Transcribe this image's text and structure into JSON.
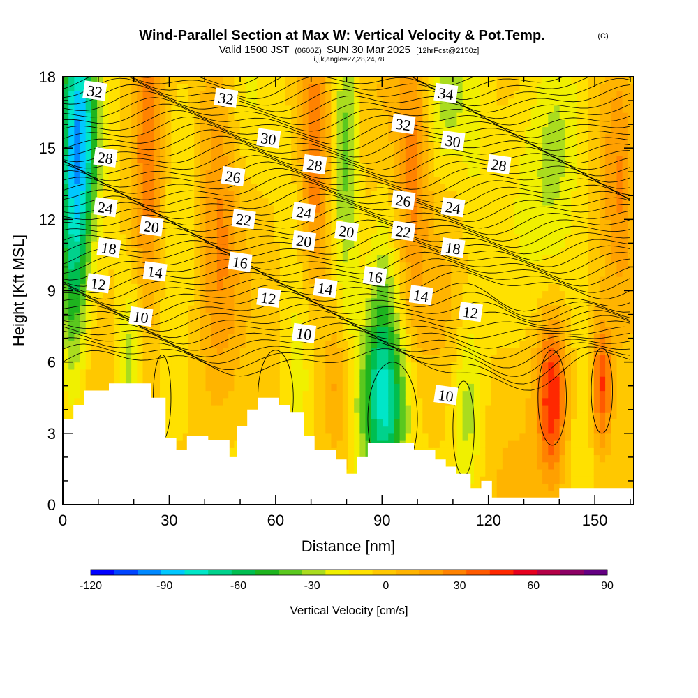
{
  "header": {
    "title": "Wind-Parallel Section at Max W: Vertical Velocity & Pot.Temp.",
    "copyright": "(C)",
    "valid_prefix": "Valid 1500 JST",
    "valid_utc": "(0600Z)",
    "valid_date": "SUN 30 Mar 2025",
    "forecast": "[12hrFcst@2150z]",
    "indices": "i,j,k,angle=27,28,24,78"
  },
  "chart_data": {
    "type": "heatmap",
    "xlabel": "Distance [nm]",
    "ylabel": "Height [Kft MSL]",
    "xlim": [
      0,
      161
    ],
    "ylim": [
      0,
      18
    ],
    "x_ticks": [
      0,
      30,
      60,
      90,
      120,
      150
    ],
    "y_ticks": [
      0,
      3,
      6,
      9,
      12,
      15,
      18
    ],
    "colorbar": {
      "label": "Vertical Velocity [cm/s]",
      "ticks": [
        -120,
        -90,
        -60,
        -30,
        0,
        30,
        60,
        90
      ],
      "levels": [
        -120,
        -110,
        -100,
        -90,
        -80,
        -70,
        -60,
        -50,
        -40,
        -30,
        -20,
        -10,
        0,
        10,
        20,
        30,
        40,
        50,
        60,
        70,
        80,
        90
      ],
      "colors": [
        "#0000ff",
        "#0044ff",
        "#0088ff",
        "#00c8ff",
        "#00e6c8",
        "#00d28c",
        "#00be50",
        "#1eb41e",
        "#5ac81e",
        "#aadc1e",
        "#f0f000",
        "#ffe100",
        "#ffc800",
        "#ffb400",
        "#ffa000",
        "#ff8200",
        "#ff5a00",
        "#ff2800",
        "#e6001e",
        "#b40046",
        "#8c0064",
        "#640082"
      ]
    },
    "terrain_profile": {
      "x": [
        0,
        3,
        3,
        6,
        6,
        9,
        9,
        13,
        13,
        16,
        16,
        25,
        25,
        29,
        29,
        32,
        32,
        35,
        35,
        41,
        41,
        47,
        47,
        49,
        49,
        52,
        52,
        55,
        55,
        58,
        58,
        61,
        61,
        64,
        64,
        68,
        68,
        71,
        71,
        77,
        77,
        80,
        80,
        83,
        83,
        86,
        86,
        89,
        89,
        99,
        99,
        105,
        105,
        108,
        108,
        111,
        111,
        115,
        115,
        118,
        118,
        121,
        121,
        124,
        124,
        127,
        127,
        140,
        140,
        161
      ],
      "height": [
        3.6,
        3.6,
        4.2,
        4.2,
        4.8,
        4.8,
        4.8,
        4.8,
        5.1,
        5.1,
        5.1,
        5.1,
        4.5,
        4.5,
        2.8,
        2.8,
        2.3,
        2.3,
        2.9,
        2.9,
        2.7,
        2.7,
        2.0,
        2.0,
        3.3,
        3.3,
        4.0,
        4.0,
        4.5,
        4.5,
        4.5,
        4.5,
        4.2,
        4.2,
        3.9,
        3.9,
        2.9,
        2.9,
        2.3,
        2.3,
        1.9,
        1.9,
        1.3,
        1.3,
        2.0,
        2.0,
        2.6,
        2.6,
        2.6,
        2.6,
        2.3,
        2.3,
        1.9,
        1.9,
        1.6,
        1.6,
        1.3,
        1.3,
        0.7,
        0.7,
        1.0,
        1.0,
        0.3,
        0.3,
        0.3,
        0.3,
        0.3,
        0.3,
        0.7,
        0.7
      ]
    },
    "vertical_velocity_features": [
      {
        "x": 3,
        "z": 14,
        "sx": 3,
        "sz": 6,
        "w": -75
      },
      {
        "x": 7,
        "z": 16,
        "sx": 2.5,
        "sz": 3,
        "w": -40
      },
      {
        "x": 24,
        "z": 14,
        "sx": 3,
        "sz": 6,
        "w": 35
      },
      {
        "x": 19,
        "z": 6,
        "sx": 2.5,
        "sz": 2.5,
        "w": -25
      },
      {
        "x": 33,
        "z": 15,
        "sx": 4,
        "sz": 4,
        "w": -15
      },
      {
        "x": 44,
        "z": 13,
        "sx": 4,
        "sz": 6,
        "w": 25
      },
      {
        "x": 52,
        "z": 16,
        "sx": 5,
        "sz": 3,
        "w": -12
      },
      {
        "x": 60,
        "z": 6,
        "sx": 3,
        "sz": 3,
        "w": 10
      },
      {
        "x": 71,
        "z": 14.5,
        "sx": 3,
        "sz": 4,
        "w": 45
      },
      {
        "x": 80,
        "z": 15,
        "sx": 2.5,
        "sz": 5,
        "w": -35
      },
      {
        "x": 78,
        "z": 5,
        "sx": 2.5,
        "sz": 2,
        "w": 25
      },
      {
        "x": 66,
        "z": 5,
        "sx": 4,
        "sz": 3,
        "w": -25
      },
      {
        "x": 91,
        "z": 4,
        "sx": 5,
        "sz": 2.5,
        "w": -55
      },
      {
        "x": 90,
        "z": 8,
        "sx": 3,
        "sz": 4,
        "w": -25
      },
      {
        "x": 99,
        "z": 14,
        "sx": 3,
        "sz": 5,
        "w": 30
      },
      {
        "x": 108,
        "z": 17,
        "sx": 4,
        "sz": 2,
        "w": -20
      },
      {
        "x": 116,
        "z": 13,
        "sx": 3,
        "sz": 5,
        "w": -12
      },
      {
        "x": 114,
        "z": 4,
        "sx": 3,
        "sz": 2.5,
        "w": -25
      },
      {
        "x": 138,
        "z": 4.5,
        "sx": 3,
        "sz": 2.5,
        "w": 60
      },
      {
        "x": 152,
        "z": 5,
        "sx": 2,
        "sz": 2,
        "w": 55
      },
      {
        "x": 140,
        "z": 15,
        "sx": 6,
        "sz": 4,
        "w": -25
      },
      {
        "x": 157,
        "z": 13,
        "sx": 3,
        "sz": 4,
        "w": 25
      }
    ],
    "potential_temperature_labels": [
      {
        "x": 9,
        "z": 17.4,
        "label": "32"
      },
      {
        "x": 12,
        "z": 14.6,
        "label": "28"
      },
      {
        "x": 12,
        "z": 12.5,
        "label": "24"
      },
      {
        "x": 13,
        "z": 10.8,
        "label": "18"
      },
      {
        "x": 10,
        "z": 9.3,
        "label": "12"
      },
      {
        "x": 25,
        "z": 11.7,
        "label": "20"
      },
      {
        "x": 26,
        "z": 9.8,
        "label": "14"
      },
      {
        "x": 22,
        "z": 7.9,
        "label": "10"
      },
      {
        "x": 46,
        "z": 17.1,
        "label": "32"
      },
      {
        "x": 48,
        "z": 13.8,
        "label": "26"
      },
      {
        "x": 51,
        "z": 12,
        "label": "22"
      },
      {
        "x": 50,
        "z": 10.2,
        "label": "16"
      },
      {
        "x": 58,
        "z": 15.4,
        "label": "30"
      },
      {
        "x": 58,
        "z": 8.7,
        "label": "12"
      },
      {
        "x": 71,
        "z": 14.3,
        "label": "28"
      },
      {
        "x": 68,
        "z": 12.3,
        "label": "24"
      },
      {
        "x": 68,
        "z": 11.1,
        "label": "20"
      },
      {
        "x": 74,
        "z": 9.1,
        "label": "14"
      },
      {
        "x": 68,
        "z": 7.2,
        "label": "10"
      },
      {
        "x": 80,
        "z": 11.5,
        "label": "20"
      },
      {
        "x": 88,
        "z": 9.6,
        "label": "16"
      },
      {
        "x": 96,
        "z": 16,
        "label": "32"
      },
      {
        "x": 96,
        "z": 12.8,
        "label": "26"
      },
      {
        "x": 96,
        "z": 11.5,
        "label": "22"
      },
      {
        "x": 101,
        "z": 8.8,
        "label": "14"
      },
      {
        "x": 108,
        "z": 17.3,
        "label": "34"
      },
      {
        "x": 110,
        "z": 15.3,
        "label": "30"
      },
      {
        "x": 110,
        "z": 12.5,
        "label": "24"
      },
      {
        "x": 110,
        "z": 10.8,
        "label": "18"
      },
      {
        "x": 115,
        "z": 8.1,
        "label": "12"
      },
      {
        "x": 123,
        "z": 14.3,
        "label": "28"
      },
      {
        "x": 108,
        "z": 4.6,
        "label": "10"
      }
    ]
  }
}
